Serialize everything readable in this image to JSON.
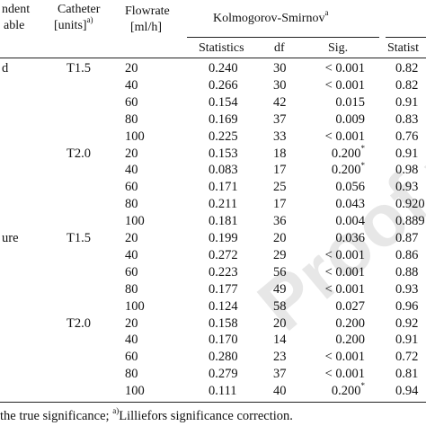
{
  "table": {
    "headers": {
      "dependent_line1": "ndent",
      "dependent_line2": "able",
      "catheter_line1": "Catheter",
      "catheter_line2": "[units]",
      "catheter_sup": "a)",
      "flowrate_line1": "Flowrate",
      "flowrate_line2": "[ml/h]",
      "ks_group": "Kolmogorov-Smirnov",
      "ks_sup": "a",
      "statistics": "Statistics",
      "df": "df",
      "sig": "Sig.",
      "right_group_statistics": "Statist"
    },
    "groups": [
      {
        "label": "d",
        "catheter": [
          {
            "label": "T1.5",
            "start_row": 0
          },
          {
            "label": "T2.0",
            "start_row": 5
          }
        ],
        "start_row": 0
      },
      {
        "label": "ure",
        "catheter": [
          {
            "label": "T1.5",
            "start_row": 10
          },
          {
            "label": "T2.0",
            "start_row": 15
          }
        ],
        "start_row": 10
      }
    ],
    "rows": [
      {
        "flow": "20",
        "stat": "0.240",
        "df": "30",
        "sig": "< 0.001",
        "sig_sup": "",
        "right": "0.82"
      },
      {
        "flow": "40",
        "stat": "0.266",
        "df": "30",
        "sig": "< 0.001",
        "sig_sup": "",
        "right": "0.82"
      },
      {
        "flow": "60",
        "stat": "0.154",
        "df": "42",
        "sig": "0.015",
        "sig_sup": "",
        "right": "0.91"
      },
      {
        "flow": "80",
        "stat": "0.169",
        "df": "37",
        "sig": "0.009",
        "sig_sup": "",
        "right": "0.83"
      },
      {
        "flow": "100",
        "stat": "0.225",
        "df": "33",
        "sig": "< 0.001",
        "sig_sup": "",
        "right": "0.76"
      },
      {
        "flow": "20",
        "stat": "0.153",
        "df": "18",
        "sig": "0.200",
        "sig_sup": "*",
        "right": "0.91"
      },
      {
        "flow": "40",
        "stat": "0.083",
        "df": "17",
        "sig": "0.200",
        "sig_sup": "*",
        "right": "0.98"
      },
      {
        "flow": "60",
        "stat": "0.171",
        "df": "25",
        "sig": "0.056",
        "sig_sup": "",
        "right": "0.93"
      },
      {
        "flow": "80",
        "stat": "0.211",
        "df": "17",
        "sig": "0.043",
        "sig_sup": "",
        "right": "0.920"
      },
      {
        "flow": "100",
        "stat": "0.181",
        "df": "36",
        "sig": "0.004",
        "sig_sup": "",
        "right": "0.889"
      },
      {
        "flow": "20",
        "stat": "0.199",
        "df": "20",
        "sig": "0.036",
        "sig_sup": "",
        "right": "0.87"
      },
      {
        "flow": "40",
        "stat": "0.272",
        "df": "29",
        "sig": "< 0.001",
        "sig_sup": "",
        "right": "0.86"
      },
      {
        "flow": "60",
        "stat": "0.223",
        "df": "56",
        "sig": "< 0.001",
        "sig_sup": "",
        "right": "0.88"
      },
      {
        "flow": "80",
        "stat": "0.177",
        "df": "49",
        "sig": "< 0.001",
        "sig_sup": "",
        "right": "0.93"
      },
      {
        "flow": "100",
        "stat": "0.124",
        "df": "58",
        "sig": "0.027",
        "sig_sup": "",
        "right": "0.96"
      },
      {
        "flow": "20",
        "stat": "0.158",
        "df": "20",
        "sig": "0.200",
        "sig_sup": "",
        "right": "0.92"
      },
      {
        "flow": "40",
        "stat": "0.170",
        "df": "14",
        "sig": "0.200",
        "sig_sup": "",
        "right": "0.91"
      },
      {
        "flow": "60",
        "stat": "0.280",
        "df": "23",
        "sig": "< 0.001",
        "sig_sup": "",
        "right": "0.72"
      },
      {
        "flow": "80",
        "stat": "0.279",
        "df": "37",
        "sig": "< 0.001",
        "sig_sup": "",
        "right": "0.81"
      },
      {
        "flow": "100",
        "stat": "0.111",
        "df": "40",
        "sig": "0.200",
        "sig_sup": "*",
        "right": "0.94"
      }
    ],
    "footnote": "the true significance; ",
    "footnote_sup": "a)",
    "footnote_tail": "Lilliefors significance correction."
  },
  "watermark": "Proof version"
}
